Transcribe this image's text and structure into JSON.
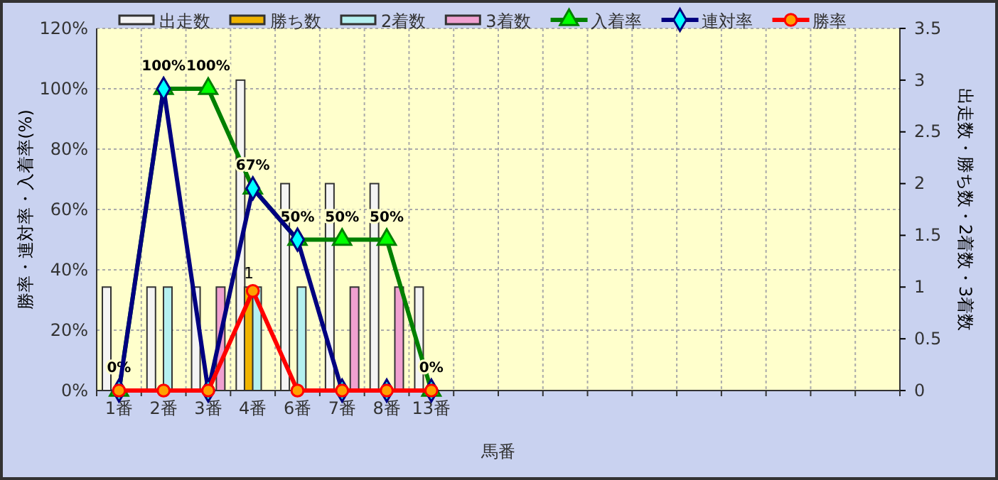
{
  "chart_data": {
    "type": "bar",
    "categories": [
      "1番",
      "2番",
      "3番",
      "4番",
      "6番",
      "7番",
      "8番",
      "13番",
      null,
      null,
      null,
      null,
      null,
      null,
      null,
      null,
      null,
      null
    ],
    "xlabel": "馬番",
    "ylabel": "勝率・連対率・入着率(%)",
    "y2label": "出走数・勝ち数・2着数・3着数",
    "ylim": [
      0,
      120
    ],
    "yticks": [
      {
        "value": 0,
        "label": "0%"
      },
      {
        "value": 20,
        "label": "20%"
      },
      {
        "value": 40,
        "label": "40%"
      },
      {
        "value": 60,
        "label": "60%"
      },
      {
        "value": 80,
        "label": "80%"
      },
      {
        "value": 100,
        "label": "100%"
      },
      {
        "value": 120,
        "label": "120%"
      }
    ],
    "y2lim": [
      0,
      3.5
    ],
    "y2ticks": [
      0,
      0.5,
      1,
      1.5,
      2,
      2.5,
      3,
      3.5
    ],
    "grid": true,
    "legend": "top",
    "series": [
      {
        "name": "出走数",
        "axis": "y2",
        "color": "#f4f4f4",
        "values": [
          1,
          1,
          1,
          3,
          2,
          2,
          2,
          1,
          null,
          null,
          null,
          null,
          null,
          null,
          null,
          null,
          null,
          null
        ]
      },
      {
        "name": "勝ち数",
        "axis": "y2",
        "color": "#f0b400",
        "values": [
          0,
          0,
          0,
          1,
          0,
          0,
          0,
          0,
          null,
          null,
          null,
          null,
          null,
          null,
          null,
          null,
          null,
          null
        ],
        "value_labels": [
          null,
          null,
          null,
          "1",
          null,
          null,
          null,
          null,
          null,
          null,
          null,
          null,
          null,
          null,
          null,
          null,
          null,
          null
        ]
      },
      {
        "name": "2着数",
        "axis": "y2",
        "color": "#b4f0f0",
        "values": [
          0,
          1,
          0,
          1,
          1,
          0,
          0,
          0,
          null,
          null,
          null,
          null,
          null,
          null,
          null,
          null,
          null,
          null
        ]
      },
      {
        "name": "3着数",
        "axis": "y2",
        "color": "#f0a0d0",
        "values": [
          0,
          0,
          1,
          0,
          0,
          1,
          1,
          0,
          null,
          null,
          null,
          null,
          null,
          null,
          null,
          null,
          null,
          null
        ]
      },
      {
        "name": "入着率",
        "type": "line",
        "color": "#008000",
        "marker": "triangle",
        "values": [
          0,
          100,
          100,
          67,
          50,
          50,
          50,
          0,
          null,
          null,
          null,
          null,
          null,
          null,
          null,
          null,
          null,
          null
        ],
        "value_labels": [
          "0%",
          "100%",
          "100%",
          "67%",
          "50%",
          "50%",
          "50%",
          "0%",
          null,
          null,
          null,
          null,
          null,
          null,
          null,
          null,
          null,
          null
        ]
      },
      {
        "name": "連対率",
        "type": "line",
        "color": "#000080",
        "marker": "diamond",
        "values": [
          0,
          100,
          0,
          67,
          50,
          0,
          0,
          0,
          null,
          null,
          null,
          null,
          null,
          null,
          null,
          null,
          null,
          null
        ]
      },
      {
        "name": "勝率",
        "type": "line",
        "color": "#ff0000",
        "marker": "circle",
        "values": [
          0,
          0,
          0,
          33,
          0,
          0,
          0,
          0,
          null,
          null,
          null,
          null,
          null,
          null,
          null,
          null,
          null,
          null
        ]
      }
    ]
  }
}
